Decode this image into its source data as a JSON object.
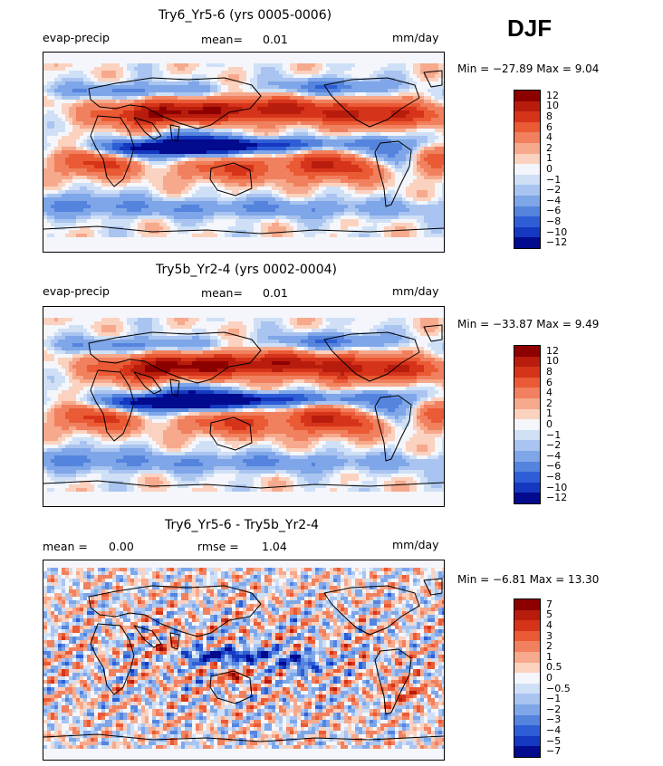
{
  "season": "DJF",
  "panels": [
    {
      "title": "Try6_Yr5-6 (yrs 0005-0006)",
      "left_label": "evap-precip",
      "mean_label": "mean=",
      "mean_value": "0.01",
      "units": "mm/day",
      "minmax": "Min = −27.89 Max =    9.04",
      "map_name": "evap-precip-map-try6",
      "levels": [
        "12",
        "10",
        "8",
        "6",
        "4",
        "2",
        "1",
        "0",
        "−1",
        "−2",
        "−4",
        "−6",
        "−8",
        "−10",
        "−12"
      ],
      "colors": [
        "#8c0000",
        "#b81c0c",
        "#d6341a",
        "#ea5a34",
        "#f0805e",
        "#f6a98c",
        "#fbd2bf",
        "#f4f6fb",
        "#cfe0f6",
        "#a9c4f0",
        "#7ea6e8",
        "#5584de",
        "#2e5ed6",
        "#1538c0",
        "#020a8e"
      ]
    },
    {
      "title": "Try5b_Yr2-4 (yrs 0002-0004)",
      "left_label": "evap-precip",
      "mean_label": "mean=",
      "mean_value": "0.01",
      "units": "mm/day",
      "minmax": "Min = −33.87 Max =    9.49",
      "map_name": "evap-precip-map-try5b",
      "levels": [
        "12",
        "10",
        "8",
        "6",
        "4",
        "2",
        "1",
        "0",
        "−1",
        "−2",
        "−4",
        "−6",
        "−8",
        "−10",
        "−12"
      ],
      "colors": [
        "#8c0000",
        "#b81c0c",
        "#d6341a",
        "#ea5a34",
        "#f0805e",
        "#f6a98c",
        "#fbd2bf",
        "#f4f6fb",
        "#cfe0f6",
        "#a9c4f0",
        "#7ea6e8",
        "#5584de",
        "#2e5ed6",
        "#1538c0",
        "#020a8e"
      ]
    },
    {
      "title": "Try6_Yr5-6 - Try5b_Yr2-4",
      "mean_label": "mean =",
      "mean_value": "0.00",
      "rmse_label": "rmse =",
      "rmse_value": "1.04",
      "units": "mm/day",
      "minmax": "Min =   −6.81 Max =  13.30",
      "map_name": "difference-map",
      "levels": [
        "7",
        "5",
        "4",
        "3",
        "2",
        "1",
        "0.5",
        "0",
        "−0.5",
        "−1",
        "−2",
        "−3",
        "−4",
        "−5",
        "−7"
      ],
      "colors": [
        "#8c0000",
        "#b81c0c",
        "#d6341a",
        "#ea5a34",
        "#f0805e",
        "#f6a98c",
        "#fbd2bf",
        "#f4f6fb",
        "#cfe0f6",
        "#a9c4f0",
        "#7ea6e8",
        "#5584de",
        "#2e5ed6",
        "#1538c0",
        "#020a8e"
      ]
    }
  ],
  "chart_data": [
    {
      "type": "heatmap",
      "title": "Try6_Yr5-6 (yrs 0005-0006)",
      "variable": "evap-precip",
      "units": "mm/day",
      "mean": 0.01,
      "min": -27.89,
      "max": 9.04,
      "contour_levels": [
        -12,
        -10,
        -8,
        -6,
        -4,
        -2,
        -1,
        0,
        1,
        2,
        4,
        6,
        8,
        10,
        12
      ]
    },
    {
      "type": "heatmap",
      "title": "Try5b_Yr2-4 (yrs 0002-0004)",
      "variable": "evap-precip",
      "units": "mm/day",
      "mean": 0.01,
      "min": -33.87,
      "max": 9.49,
      "contour_levels": [
        -12,
        -10,
        -8,
        -6,
        -4,
        -2,
        -1,
        0,
        1,
        2,
        4,
        6,
        8,
        10,
        12
      ]
    },
    {
      "type": "heatmap",
      "title": "Try6_Yr5-6 - Try5b_Yr2-4",
      "units": "mm/day",
      "mean": 0.0,
      "rmse": 1.04,
      "min": -6.81,
      "max": 13.3,
      "contour_levels": [
        -7,
        -5,
        -4,
        -3,
        -2,
        -1,
        -0.5,
        0,
        0.5,
        1,
        2,
        3,
        4,
        5,
        7
      ]
    }
  ]
}
